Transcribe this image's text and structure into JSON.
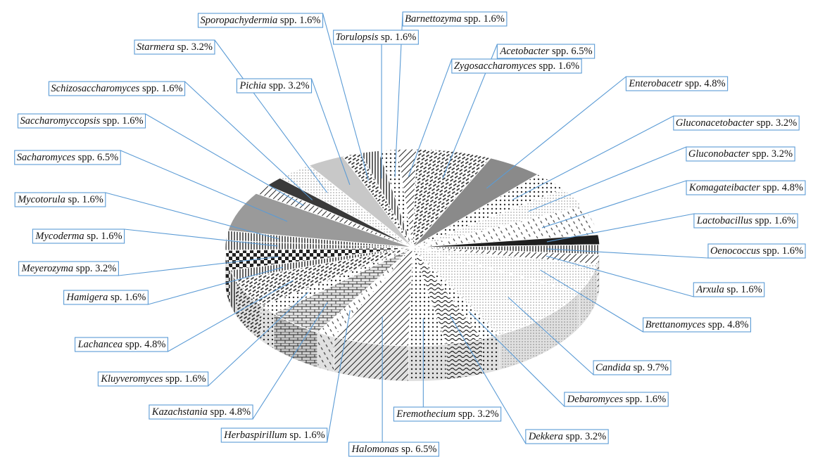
{
  "chart_data": {
    "type": "pie",
    "title": "",
    "style": "3d-pie-with-pattern-fills-and-callouts",
    "slices": [
      {
        "label": "Acetobacter",
        "suffix": "spp.",
        "value": 6.5,
        "pct": "6.5%",
        "fill": "#4a4a4a",
        "pattern": "diag-dash"
      },
      {
        "label": "Enterobacetr",
        "suffix": "spp.",
        "value": 4.8,
        "pct": "4.8%",
        "fill": "#8a8a8a",
        "pattern": "solid"
      },
      {
        "label": "Gluconacetobacter",
        "suffix": "spp.",
        "value": 3.2,
        "pct": "3.2%",
        "fill": "#cfcfcf",
        "pattern": "dots"
      },
      {
        "label": "Gluconobacter",
        "suffix": "spp.",
        "value": 3.2,
        "pct": "3.2%",
        "fill": "#f2f2f2",
        "pattern": "fine-dots"
      },
      {
        "label": "Komagateibacter",
        "suffix": "spp.",
        "value": 4.8,
        "pct": "4.8%",
        "fill": "#bdbdbd",
        "pattern": "dash"
      },
      {
        "label": "Lactobacillus",
        "suffix": "spp.",
        "value": 1.6,
        "pct": "1.6%",
        "fill": "#1e1e1e",
        "pattern": "solid"
      },
      {
        "label": "Oenococcus",
        "suffix": "spp.",
        "value": 1.6,
        "pct": "1.6%",
        "fill": "#6e6e6e",
        "pattern": "vertical"
      },
      {
        "label": "Arxula",
        "suffix": "sp.",
        "value": 1.6,
        "pct": "1.6%",
        "fill": "#a8a8a8",
        "pattern": "diag"
      },
      {
        "label": "Brettanomyces",
        "suffix": "spp.",
        "value": 4.8,
        "pct": "4.8%",
        "fill": "#e8e8e8",
        "pattern": "fine-dots"
      },
      {
        "label": "Candida",
        "suffix": "sp.",
        "value": 9.7,
        "pct": "9.7%",
        "fill": "#f7f7f7",
        "pattern": "fine-dots"
      },
      {
        "label": "Debaromyces",
        "suffix": "spp.",
        "value": 1.6,
        "pct": "1.6%",
        "fill": "#9e9e9e",
        "pattern": "dots"
      },
      {
        "label": "Dekkera",
        "suffix": "spp.",
        "value": 3.2,
        "pct": "3.2%",
        "fill": "#5a5a5a",
        "pattern": "wave"
      },
      {
        "label": "Eremothecium",
        "suffix": "spp.",
        "value": 3.2,
        "pct": "3.2%",
        "fill": "#dcdcdc",
        "pattern": "dots"
      },
      {
        "label": "Halomonas",
        "suffix": "sp.",
        "value": 6.5,
        "pct": "6.5%",
        "fill": "#7d7d7d",
        "pattern": "diag"
      },
      {
        "label": "Herbaspirillum",
        "suffix": "sp.",
        "value": 1.6,
        "pct": "1.6%",
        "fill": "#efefef",
        "pattern": "dash"
      },
      {
        "label": "Kazachstania",
        "suffix": "spp.",
        "value": 4.8,
        "pct": "4.8%",
        "fill": "#c4c4c4",
        "pattern": "brick"
      },
      {
        "label": "Kluyveromyces",
        "suffix": "spp.",
        "value": 1.6,
        "pct": "1.6%",
        "fill": "#b0b0b0",
        "pattern": "dots"
      },
      {
        "label": "Lachancea",
        "suffix": "spp.",
        "value": 4.8,
        "pct": "4.8%",
        "fill": "#ededed",
        "pattern": "diag-dash"
      },
      {
        "label": "Hamigera",
        "suffix": "sp.",
        "value": 1.6,
        "pct": "1.6%",
        "fill": "#6a6a6a",
        "pattern": "vertical"
      },
      {
        "label": "Meyerozyma",
        "suffix": "spp.",
        "value": 3.2,
        "pct": "3.2%",
        "fill": "#2e2e2e",
        "pattern": "checker"
      },
      {
        "label": "Mycoderma",
        "suffix": "sp.",
        "value": 1.6,
        "pct": "1.6%",
        "fill": "#e0e0e0",
        "pattern": "vertical"
      },
      {
        "label": "Mycotorula",
        "suffix": "sp.",
        "value": 1.6,
        "pct": "1.6%",
        "fill": "#d2d2d2",
        "pattern": "vertical"
      },
      {
        "label": "Sacharomyces",
        "suffix": "spp.",
        "value": 6.5,
        "pct": "6.5%",
        "fill": "#9a9a9a",
        "pattern": "solid"
      },
      {
        "label": "Saccharomyccopsis",
        "suffix": "spp.",
        "value": 1.6,
        "pct": "1.6%",
        "fill": "#ececec",
        "pattern": "diag"
      },
      {
        "label": "Schizosaccharomyces",
        "suffix": "spp.",
        "value": 1.6,
        "pct": "1.6%",
        "fill": "#3a3a3a",
        "pattern": "solid"
      },
      {
        "label": "Starmera",
        "suffix": "sp.",
        "value": 3.2,
        "pct": "3.2%",
        "fill": "#f4f4f4",
        "pattern": "fine-dots"
      },
      {
        "label": "Pichia",
        "suffix": "spp.",
        "value": 3.2,
        "pct": "3.2%",
        "fill": "#c8c8c8",
        "pattern": "solid"
      },
      {
        "label": "Sporopachydermia",
        "suffix": "spp.",
        "value": 1.6,
        "pct": "1.6%",
        "fill": "#444444",
        "pattern": "diag-dash"
      },
      {
        "label": "Torulopsis",
        "suffix": "sp.",
        "value": 1.6,
        "pct": "1.6%",
        "fill": "#bcbcbc",
        "pattern": "vertical"
      },
      {
        "label": "Barnettozyma",
        "suffix": "spp.",
        "value": 1.6,
        "pct": "1.6%",
        "fill": "#e4e4e4",
        "pattern": "dots"
      },
      {
        "label": "Zygosaccharomyces",
        "suffix": "spp.",
        "value": 1.6,
        "pct": "1.6%",
        "fill": "#d8d8d8",
        "pattern": "diag"
      }
    ]
  },
  "colors": {
    "callout_border": "#5b9bd5",
    "text": "#111111"
  }
}
